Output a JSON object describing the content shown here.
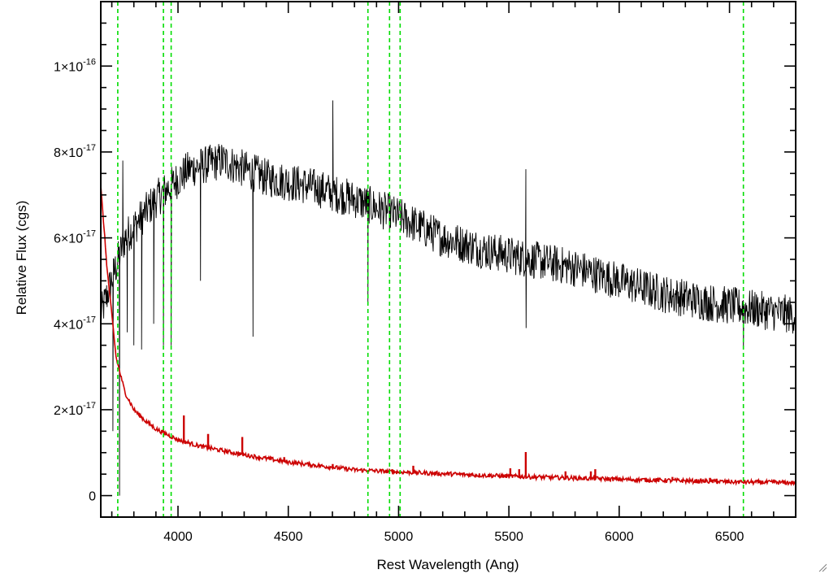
{
  "chart_data": {
    "type": "line",
    "title": "",
    "xlabel": "Rest Wavelength (Ang)",
    "ylabel": "Relative Flux (cgs)",
    "xlim": [
      3650,
      6800
    ],
    "ylim": [
      -5e-18,
      1.15e-16
    ],
    "x_ticks": [
      {
        "value": 4000,
        "label": "4000"
      },
      {
        "value": 4500,
        "label": "4500"
      },
      {
        "value": 5000,
        "label": "5000"
      },
      {
        "value": 5500,
        "label": "5500"
      },
      {
        "value": 6000,
        "label": "6000"
      },
      {
        "value": 6500,
        "label": "6500"
      }
    ],
    "y_ticks": [
      {
        "value": 0,
        "mant": "0",
        "exp": ""
      },
      {
        "value": 2e-17,
        "mant": "2×10",
        "exp": "-17"
      },
      {
        "value": 4e-17,
        "mant": "4×10",
        "exp": "-17"
      },
      {
        "value": 6e-17,
        "mant": "6×10",
        "exp": "-17"
      },
      {
        "value": 8e-17,
        "mant": "8×10",
        "exp": "-17"
      },
      {
        "value": 1e-16,
        "mant": "1×10",
        "exp": "-16"
      }
    ],
    "grid": false,
    "series": [
      {
        "role": "spectrum",
        "color": "#000000",
        "continuum": [
          [
            3650,
            4.2e-17
          ],
          [
            3760,
            6e-17
          ],
          [
            3900,
            6.9e-17
          ],
          [
            4050,
            7.6e-17
          ],
          [
            4200,
            7.8e-17
          ],
          [
            4400,
            7.4e-17
          ],
          [
            4600,
            7.2e-17
          ],
          [
            4800,
            6.9e-17
          ],
          [
            5000,
            6.5e-17
          ],
          [
            5200,
            6e-17
          ],
          [
            5400,
            5.7e-17
          ],
          [
            5600,
            5.5e-17
          ],
          [
            5800,
            5.3e-17
          ],
          [
            6000,
            5e-17
          ],
          [
            6200,
            4.7e-17
          ],
          [
            6400,
            4.5e-17
          ],
          [
            6600,
            4.35e-17
          ],
          [
            6800,
            4.2e-17
          ]
        ],
        "noise": 4.5e-18,
        "features": [
          {
            "x": 3705,
            "y": 1.5e-17
          },
          {
            "x": 3735,
            "y": 0.0
          },
          {
            "x": 3750,
            "y": 7.8e-17
          },
          {
            "x": 3770,
            "y": 3.8e-17
          },
          {
            "x": 3800,
            "y": 3.5e-17
          },
          {
            "x": 3835,
            "y": 3.4e-17
          },
          {
            "x": 3890,
            "y": 4e-17
          },
          {
            "x": 3934,
            "y": 3.5e-17
          },
          {
            "x": 3969,
            "y": 3.5e-17
          },
          {
            "x": 4102,
            "y": 5e-17
          },
          {
            "x": 4340,
            "y": 3.7e-17
          },
          {
            "x": 4702,
            "y": 9.2e-17
          },
          {
            "x": 4861,
            "y": 4.5e-17
          },
          {
            "x": 5577,
            "y": 7.6e-17
          },
          {
            "x": 5578,
            "y": 3.9e-17
          },
          {
            "x": 5890,
            "y": 4.9e-17
          },
          {
            "x": 6563,
            "y": 3.4e-17
          }
        ]
      },
      {
        "role": "error",
        "color": "#cc0000",
        "curve": [
          [
            3650,
            7.2e-17
          ],
          [
            3680,
            5.2e-17
          ],
          [
            3720,
            3.2e-17
          ],
          [
            3760,
            2.4e-17
          ],
          [
            3800,
            2e-17
          ],
          [
            3850,
            1.75e-17
          ],
          [
            3900,
            1.55e-17
          ],
          [
            4000,
            1.3e-17
          ],
          [
            4100,
            1.15e-17
          ],
          [
            4300,
            9.5e-18
          ],
          [
            4500,
            7.8e-18
          ],
          [
            4800,
            6e-18
          ],
          [
            5000,
            5.5e-18
          ],
          [
            5500,
            4.5e-18
          ],
          [
            6000,
            3.8e-18
          ],
          [
            6500,
            3.2e-18
          ],
          [
            6800,
            3e-18
          ]
        ],
        "noise": 5e-19,
        "spikes": [
          {
            "x": 4025,
            "y": 1.85e-17
          },
          {
            "x": 4135,
            "y": 1.42e-17
          },
          {
            "x": 4290,
            "y": 1.35e-17
          },
          {
            "x": 4480,
            "y": 8.8e-18
          },
          {
            "x": 4700,
            "y": 7.2e-18
          },
          {
            "x": 4970,
            "y": 6e-18
          },
          {
            "x": 5065,
            "y": 6.8e-18
          },
          {
            "x": 5505,
            "y": 6.2e-18
          },
          {
            "x": 5545,
            "y": 6e-18
          },
          {
            "x": 5575,
            "y": 1e-17
          },
          {
            "x": 5755,
            "y": 5.5e-18
          },
          {
            "x": 5870,
            "y": 5.5e-18
          },
          {
            "x": 5890,
            "y": 6e-18
          },
          {
            "x": 6240,
            "y": 4.2e-18
          },
          {
            "x": 6410,
            "y": 4e-18
          },
          {
            "x": 6440,
            "y": 3.8e-18
          },
          {
            "x": 6700,
            "y": 3.6e-18
          }
        ]
      }
    ],
    "reference_lines": {
      "color": "#00dd00",
      "style": "dashed",
      "x": [
        3727,
        3934,
        3969,
        4861,
        4959,
        5007,
        6563
      ]
    }
  }
}
